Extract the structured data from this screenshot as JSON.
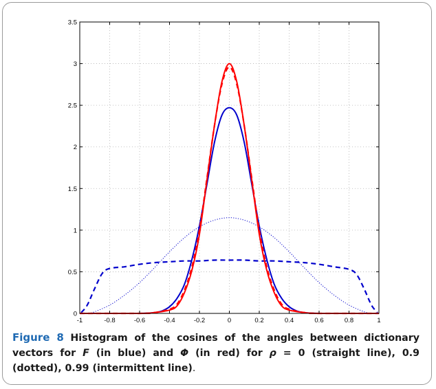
{
  "caption": {
    "label": "Figure 8",
    "parts": [
      {
        "text": " Histogram of the cosines of the angles between dictionary vectors for ",
        "style": "bold"
      },
      {
        "text": "F",
        "style": "em"
      },
      {
        "text": " (in blue) and ",
        "style": "bold"
      },
      {
        "text": "Φ",
        "style": "em"
      },
      {
        "text": " (in red) for ",
        "style": "bold"
      },
      {
        "text": "ρ",
        "style": "em"
      },
      {
        "text": " = 0 (straight line), 0.9 (dotted), 0.99 (intermittent line)",
        "style": "bold"
      },
      {
        "text": ".",
        "style": "plain"
      }
    ]
  },
  "chart_data": {
    "type": "line",
    "title": "",
    "xlabel": "",
    "ylabel": "",
    "xlim": [
      -1,
      1
    ],
    "ylim": [
      0,
      3.5
    ],
    "xticks": [
      "-1",
      "-0.8",
      "-0.6",
      "-0.4",
      "-0.2",
      "0",
      "0.2",
      "0.4",
      "0.6",
      "0.8",
      "1"
    ],
    "yticks": [
      "0",
      "0.5",
      "1",
      "1.5",
      "2",
      "2.5",
      "3",
      "3.5"
    ],
    "grid": true,
    "legend": "none",
    "colors": {
      "blue": "#0000cc",
      "red": "#ff0000"
    },
    "series": [
      {
        "color": "#ff0000",
        "style": "solid",
        "x": [
          -1,
          -0.6,
          -0.5,
          -0.4,
          -0.35,
          -0.3,
          -0.25,
          -0.2,
          -0.15,
          -0.1,
          -0.05,
          0,
          0.05,
          0.1,
          0.15,
          0.2,
          0.25,
          0.3,
          0.35,
          0.4,
          0.5,
          0.6,
          1
        ],
        "y": [
          0,
          0,
          0.01,
          0.04,
          0.09,
          0.25,
          0.52,
          0.95,
          1.6,
          2.25,
          2.78,
          3.0,
          2.78,
          2.25,
          1.6,
          0.95,
          0.52,
          0.25,
          0.09,
          0.04,
          0.01,
          0,
          0
        ]
      },
      {
        "color": "#ff0000",
        "style": "dashed",
        "x": [
          -1,
          -0.6,
          -0.5,
          -0.4,
          -0.35,
          -0.3,
          -0.25,
          -0.2,
          -0.15,
          -0.1,
          -0.05,
          0,
          0.05,
          0.1,
          0.15,
          0.2,
          0.25,
          0.3,
          0.35,
          0.4,
          0.5,
          0.6,
          1
        ],
        "y": [
          0,
          0,
          0.01,
          0.05,
          0.11,
          0.28,
          0.56,
          1.0,
          1.62,
          2.25,
          2.75,
          2.96,
          2.75,
          2.25,
          1.62,
          1.0,
          0.56,
          0.28,
          0.11,
          0.05,
          0.01,
          0,
          0
        ]
      },
      {
        "color": "#0000cc",
        "style": "solid",
        "x": [
          -1,
          -0.6,
          -0.5,
          -0.45,
          -0.4,
          -0.35,
          -0.3,
          -0.25,
          -0.2,
          -0.15,
          -0.1,
          -0.05,
          0,
          0.05,
          0.1,
          0.15,
          0.2,
          0.25,
          0.3,
          0.35,
          0.4,
          0.45,
          0.5,
          0.6,
          1
        ],
        "y": [
          0,
          0,
          0.01,
          0.03,
          0.08,
          0.18,
          0.35,
          0.65,
          1.05,
          1.55,
          2.05,
          2.38,
          2.47,
          2.38,
          2.05,
          1.55,
          1.05,
          0.65,
          0.35,
          0.18,
          0.08,
          0.03,
          0.01,
          0,
          0
        ]
      },
      {
        "color": "#0000cc",
        "style": "dotted",
        "x": [
          -0.94,
          -0.9,
          -0.8,
          -0.7,
          -0.6,
          -0.5,
          -0.4,
          -0.3,
          -0.2,
          -0.1,
          0,
          0.1,
          0.2,
          0.3,
          0.4,
          0.5,
          0.6,
          0.7,
          0.8,
          0.9,
          0.94
        ],
        "y": [
          0,
          0.02,
          0.1,
          0.22,
          0.37,
          0.55,
          0.74,
          0.91,
          1.04,
          1.12,
          1.15,
          1.12,
          1.04,
          0.91,
          0.74,
          0.55,
          0.37,
          0.22,
          0.1,
          0.02,
          0
        ]
      },
      {
        "color": "#0000cc",
        "style": "dashed",
        "x": [
          -0.99,
          -0.95,
          -0.9,
          -0.85,
          -0.8,
          -0.7,
          -0.6,
          -0.5,
          -0.4,
          -0.3,
          -0.2,
          -0.1,
          0,
          0.1,
          0.2,
          0.3,
          0.4,
          0.5,
          0.6,
          0.7,
          0.8,
          0.85,
          0.9,
          0.95,
          0.99
        ],
        "y": [
          0.01,
          0.1,
          0.3,
          0.48,
          0.54,
          0.56,
          0.59,
          0.61,
          0.62,
          0.63,
          0.63,
          0.64,
          0.64,
          0.64,
          0.63,
          0.63,
          0.62,
          0.61,
          0.59,
          0.56,
          0.53,
          0.47,
          0.3,
          0.1,
          0.01
        ]
      }
    ]
  }
}
